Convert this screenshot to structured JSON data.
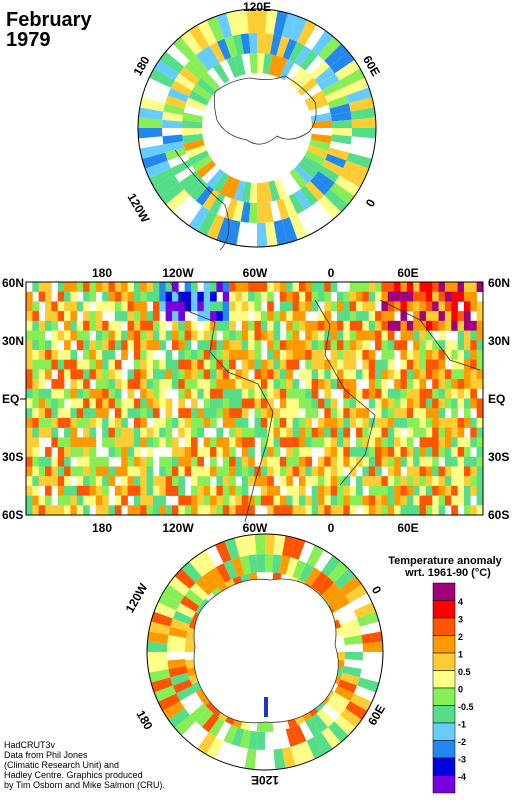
{
  "title": {
    "month": "February",
    "year": "1979"
  },
  "north_polar": {
    "labels": [
      {
        "text": "120E"
      },
      {
        "text": "60E"
      },
      {
        "text": "180"
      },
      {
        "text": "0"
      },
      {
        "text": "120W"
      }
    ]
  },
  "equatorial": {
    "top_lon_labels": [
      "180",
      "120W",
      "60W",
      "0",
      "60E"
    ],
    "bottom_lon_labels": [
      "180",
      "120W",
      "60W",
      "0",
      "60E"
    ],
    "lat_labels": [
      "60N",
      "30N",
      "EQ",
      "30S",
      "60S"
    ]
  },
  "south_polar": {
    "labels": [
      {
        "text": "120W"
      },
      {
        "text": "0"
      },
      {
        "text": "180"
      },
      {
        "text": "60E"
      },
      {
        "text": "120E"
      }
    ]
  },
  "legend": {
    "title_line1": "Temperature anomaly",
    "title_line2": "wrt. 1961-90  (°C)",
    "bins": [
      {
        "color": "#a0007a",
        "label": "4"
      },
      {
        "color": "#ff0000",
        "label": "3"
      },
      {
        "color": "#ff5500",
        "label": "2"
      },
      {
        "color": "#ff9900",
        "label": "1"
      },
      {
        "color": "#ffcc33",
        "label": "0.5"
      },
      {
        "color": "#ffff88",
        "label": "0"
      },
      {
        "color": "#88ee55",
        "label": "-0.5"
      },
      {
        "color": "#55dd88",
        "label": "-1"
      },
      {
        "color": "#66ccff",
        "label": "-2"
      },
      {
        "color": "#2288ee",
        "label": "-3"
      },
      {
        "color": "#0000dd",
        "label": "-4"
      },
      {
        "color": "#7700dd",
        "label": ""
      }
    ]
  },
  "credits": [
    "HadCRUT3v",
    "Data from Phil Jones",
    "(Climatic Research Unit) and",
    "Hadley Centre.  Graphics produced",
    "by Tim Osborn and Mike Salmon (CRU)."
  ]
}
